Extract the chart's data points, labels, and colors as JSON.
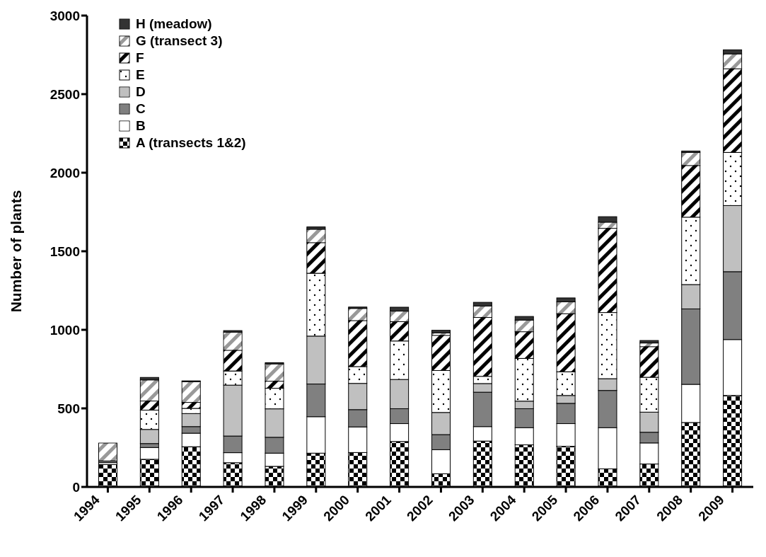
{
  "chart_data": {
    "type": "bar",
    "stacked": true,
    "ylabel": "Number of plants",
    "categories": [
      "1994",
      "1995",
      "1996",
      "1997",
      "1998",
      "1999",
      "2000",
      "2001",
      "2002",
      "2003",
      "2004",
      "2005",
      "2006",
      "2007",
      "2008",
      "2009"
    ],
    "ylim": [
      0,
      3000
    ],
    "yticks": [
      0,
      500,
      1000,
      1500,
      2000,
      2500,
      3000
    ],
    "legend": "top left",
    "series": [
      {
        "name": "A (transects 1&2)",
        "color": "#000000",
        "values": [
          143,
          176,
          256,
          154,
          131,
          215,
          219,
          289,
          84,
          292,
          268,
          259,
          115,
          146,
          410,
          582
        ]
      },
      {
        "name": "B",
        "color": "#ffffff",
        "values": [
          12,
          75,
          86,
          64,
          84,
          232,
          163,
          114,
          153,
          92,
          109,
          144,
          262,
          134,
          243,
          356
        ]
      },
      {
        "name": "C",
        "color": "#808080",
        "values": [
          11,
          25,
          42,
          106,
          101,
          208,
          110,
          95,
          96,
          219,
          121,
          129,
          237,
          68,
          480,
          432
        ]
      },
      {
        "name": "D",
        "color": "#c0c0c0",
        "values": [
          0,
          90,
          83,
          324,
          181,
          305,
          167,
          186,
          141,
          55,
          48,
          50,
          75,
          128,
          155,
          421
        ]
      },
      {
        "name": "E",
        "color": "#ffffff",
        "values": [
          0,
          123,
          33,
          90,
          131,
          400,
          107,
          245,
          267,
          46,
          272,
          151,
          421,
          222,
          429,
          338
        ]
      },
      {
        "name": "F",
        "color": "#000000",
        "values": [
          0,
          58,
          38,
          132,
          45,
          195,
          293,
          123,
          224,
          375,
          170,
          370,
          536,
          195,
          329,
          533
        ]
      },
      {
        "name": "G (transect 3)",
        "color": "#999999",
        "values": [
          113,
          134,
          132,
          115,
          110,
          85,
          77,
          67,
          15,
          72,
          74,
          75,
          39,
          23,
          83,
          94
        ]
      },
      {
        "name": "H (meadow)",
        "color": "#333333",
        "values": [
          0,
          16,
          5,
          10,
          8,
          15,
          9,
          25,
          17,
          24,
          23,
          25,
          35,
          16,
          9,
          26
        ]
      }
    ]
  }
}
